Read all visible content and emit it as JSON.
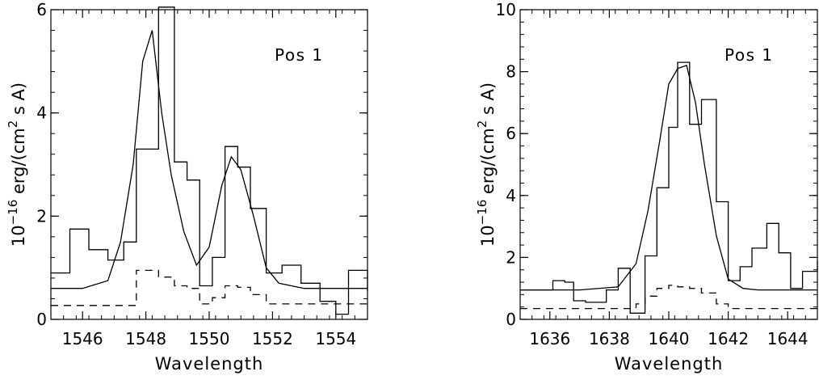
{
  "chart_data": [
    {
      "type": "line",
      "annotation": "Pos 1",
      "xlabel": "Wavelength",
      "ylabel_base": "10",
      "ylabel_exp": "−16",
      "ylabel_text": "erg/(cm",
      "ylabel_exp2": "2",
      "ylabel_tail": "s A)",
      "xlim": [
        1545,
        1555
      ],
      "ylim": [
        0,
        6
      ],
      "xticks": [
        1546,
        1548,
        1550,
        1552,
        1554
      ],
      "xtick_labels": [
        "1546",
        "1548",
        "1550",
        "1552",
        "1554"
      ],
      "yticks": [
        0,
        2,
        4,
        6
      ],
      "ytick_labels": [
        "0",
        "2",
        "4",
        "6"
      ],
      "yminor_step": 0.4,
      "xminor_step": 0.4,
      "series": [
        {
          "style": "histogram",
          "bin_edges": [
            1545,
            1545.6,
            1546.2,
            1546.8,
            1547.3,
            1547.7,
            1548.4,
            1548.9,
            1549.3,
            1549.7,
            1550.1,
            1550.5,
            1550.9,
            1551.3,
            1551.8,
            1552.3,
            1552.9,
            1553.5,
            1554.0,
            1554.4,
            1555
          ],
          "values": [
            0.9,
            1.75,
            1.35,
            1.15,
            1.5,
            3.3,
            6.05,
            3.05,
            2.7,
            0.65,
            1.2,
            3.35,
            2.95,
            2.15,
            0.9,
            1.05,
            0.7,
            0.35,
            0.1,
            0.95,
            0.55
          ]
        },
        {
          "style": "line",
          "x": [
            1545,
            1546,
            1546.8,
            1547.2,
            1547.6,
            1547.9,
            1548.2,
            1548.5,
            1548.8,
            1549.2,
            1549.6,
            1550.0,
            1550.4,
            1550.7,
            1551.0,
            1551.4,
            1551.8,
            1552.2,
            1553,
            1555
          ],
          "y": [
            0.6,
            0.6,
            0.75,
            1.5,
            3.0,
            5.0,
            5.6,
            4.0,
            2.8,
            1.7,
            1.05,
            1.4,
            2.6,
            3.15,
            2.9,
            2.0,
            1.0,
            0.7,
            0.6,
            0.6
          ]
        },
        {
          "style": "dashed_histogram",
          "bin_edges": [
            1545,
            1547.7,
            1548.4,
            1548.9,
            1549.3,
            1549.7,
            1550.1,
            1550.5,
            1550.9,
            1551.3,
            1551.8,
            1555
          ],
          "values": [
            0.27,
            0.95,
            0.82,
            0.65,
            0.6,
            0.3,
            0.42,
            0.65,
            0.62,
            0.48,
            0.3,
            0.27
          ]
        }
      ]
    },
    {
      "type": "line",
      "annotation": "Pos 1",
      "xlabel": "Wavelength",
      "ylabel_base": "10",
      "ylabel_exp": "−16",
      "ylabel_text": "erg/(cm",
      "ylabel_exp2": "2",
      "ylabel_tail": "s A)",
      "xlim": [
        1635,
        1645
      ],
      "ylim": [
        0,
        10
      ],
      "xticks": [
        1636,
        1638,
        1640,
        1642,
        1644
      ],
      "xtick_labels": [
        "1636",
        "1638",
        "1640",
        "1642",
        "1644"
      ],
      "yticks": [
        0,
        2,
        4,
        6,
        8,
        10
      ],
      "ytick_labels": [
        "0",
        "2",
        "4",
        "6",
        "8",
        "10"
      ],
      "yminor_step": 0.4,
      "xminor_step": 0.4,
      "series": [
        {
          "style": "histogram",
          "bin_edges": [
            1635,
            1635.6,
            1636.1,
            1636.5,
            1636.8,
            1637.2,
            1637.9,
            1638.3,
            1638.7,
            1639.2,
            1639.6,
            1640.0,
            1640.3,
            1640.7,
            1641.1,
            1641.6,
            1642.0,
            1642.4,
            1642.8,
            1643.3,
            1643.7,
            1644.1,
            1644.5,
            1645
          ],
          "values": [
            0.95,
            0.95,
            1.25,
            1.2,
            0.6,
            0.55,
            0.95,
            1.65,
            0.2,
            2.05,
            4.25,
            6.2,
            8.3,
            6.3,
            7.1,
            3.8,
            1.25,
            1.7,
            2.3,
            3.1,
            2.15,
            1.0,
            1.55,
            1.9
          ]
        },
        {
          "style": "line",
          "x": [
            1635,
            1637,
            1638.3,
            1638.9,
            1639.3,
            1639.7,
            1640.0,
            1640.3,
            1640.6,
            1640.9,
            1641.2,
            1641.6,
            1642.0,
            1642.5,
            1643,
            1645
          ],
          "y": [
            0.95,
            0.95,
            1.05,
            1.8,
            3.5,
            5.8,
            7.6,
            8.1,
            8.2,
            7.0,
            5.0,
            2.7,
            1.3,
            1.0,
            0.95,
            0.95
          ]
        },
        {
          "style": "dashed_histogram",
          "bin_edges": [
            1635,
            1638.9,
            1639.2,
            1639.6,
            1640.0,
            1640.3,
            1640.7,
            1641.1,
            1641.6,
            1642.0,
            1645
          ],
          "values": [
            0.35,
            0.5,
            0.75,
            1.0,
            1.1,
            1.05,
            1.0,
            0.85,
            0.5,
            0.35,
            0.35
          ]
        }
      ]
    }
  ]
}
